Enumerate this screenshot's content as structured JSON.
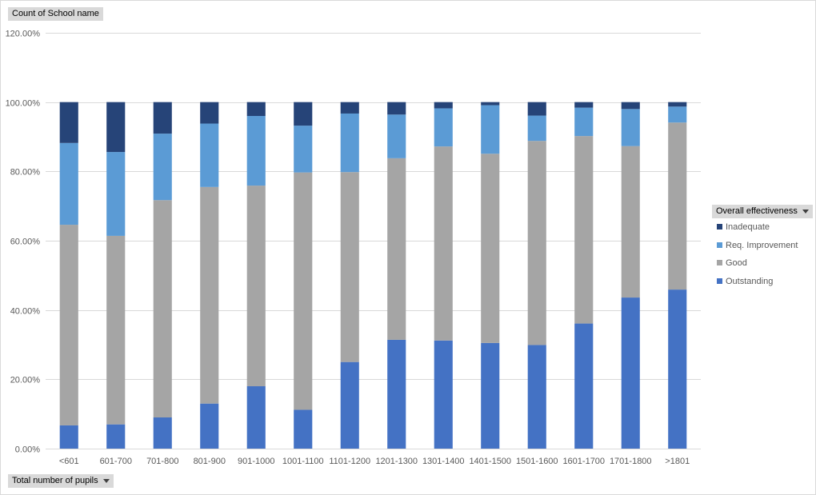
{
  "values_field": {
    "label": "Count of School name"
  },
  "axis_field": {
    "label": "Total number of pupils"
  },
  "legend_field": {
    "label": "Overall effectiveness"
  },
  "chart_data": {
    "type": "bar",
    "stacked": true,
    "ylim": [
      0,
      120
    ],
    "yticks": [
      "0.00%",
      "20.00%",
      "40.00%",
      "60.00%",
      "80.00%",
      "100.00%",
      "120.00%"
    ],
    "ytick_values": [
      0,
      20,
      40,
      60,
      80,
      100,
      120
    ],
    "grid": true,
    "legend_position": "right",
    "categories": [
      "<601",
      "601-700",
      "701-800",
      "801-900",
      "901-1000",
      "1001-1100",
      "1101-1200",
      "1201-1300",
      "1301-1400",
      "1401-1500",
      "1501-1600",
      "1601-1700",
      "1701-1800",
      ">1801"
    ],
    "series": [
      {
        "name": "Outstanding",
        "color": "#4472c4",
        "values": [
          6.7,
          7.0,
          9.0,
          13.0,
          18.0,
          11.2,
          25.0,
          31.4,
          31.2,
          30.5,
          29.9,
          36.1,
          43.6,
          45.9
        ]
      },
      {
        "name": "Good",
        "color": "#a5a5a5",
        "values": [
          57.9,
          54.4,
          62.7,
          62.5,
          57.9,
          68.5,
          54.8,
          52.4,
          56.0,
          54.6,
          58.9,
          54.1,
          43.7,
          48.2
        ]
      },
      {
        "name": "Req. Improvement",
        "color": "#5b9bd5",
        "values": [
          23.6,
          24.2,
          19.2,
          18.3,
          20.1,
          13.5,
          16.9,
          12.6,
          11.0,
          14.0,
          7.3,
          8.2,
          10.7,
          4.6
        ]
      },
      {
        "name": "Inadequate",
        "color": "#264478",
        "values": [
          11.8,
          14.4,
          9.1,
          6.2,
          4.0,
          6.8,
          3.3,
          3.6,
          1.8,
          0.9,
          3.9,
          1.6,
          2.0,
          1.3
        ]
      }
    ]
  }
}
